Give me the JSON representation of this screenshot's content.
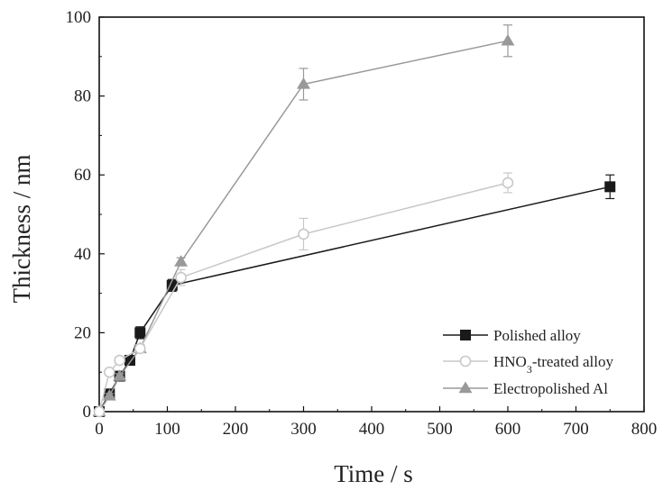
{
  "chart_data": {
    "type": "line",
    "xlabel": "Time / s",
    "ylabel": "Thickness / nm",
    "xlim": [
      0,
      800
    ],
    "ylim": [
      0,
      100
    ],
    "xticks": [
      0,
      100,
      200,
      300,
      400,
      500,
      600,
      700,
      800
    ],
    "yticks": [
      0,
      20,
      40,
      60,
      80,
      100
    ],
    "grid": false,
    "legend_position": "bottom-right",
    "series": [
      {
        "name": "Polished alloy",
        "marker": "square-filled",
        "color": "#1a1a1a",
        "x": [
          0,
          15,
          30,
          45,
          60,
          107,
          750
        ],
        "y": [
          0,
          4.5,
          9,
          13,
          20,
          32,
          57
        ],
        "err": [
          0,
          0.6,
          0.6,
          0.8,
          1.5,
          1.5,
          3
        ]
      },
      {
        "name": "HNO3-treated alloy",
        "marker": "circle-open",
        "color": "#c8c8c8",
        "x": [
          0,
          15,
          30,
          60,
          120,
          300,
          600
        ],
        "y": [
          0,
          10,
          13,
          16,
          34,
          45,
          58
        ],
        "err": [
          0,
          0.6,
          0.6,
          1,
          2,
          4,
          2.5
        ]
      },
      {
        "name": "Electropolished Al",
        "marker": "triangle-filled",
        "color": "#999999",
        "x": [
          0,
          15,
          30,
          60,
          120,
          300,
          600
        ],
        "y": [
          0,
          4,
          9,
          16,
          38,
          83,
          94
        ],
        "err": [
          0,
          0.6,
          0.6,
          1,
          1,
          4,
          4
        ]
      }
    ]
  }
}
